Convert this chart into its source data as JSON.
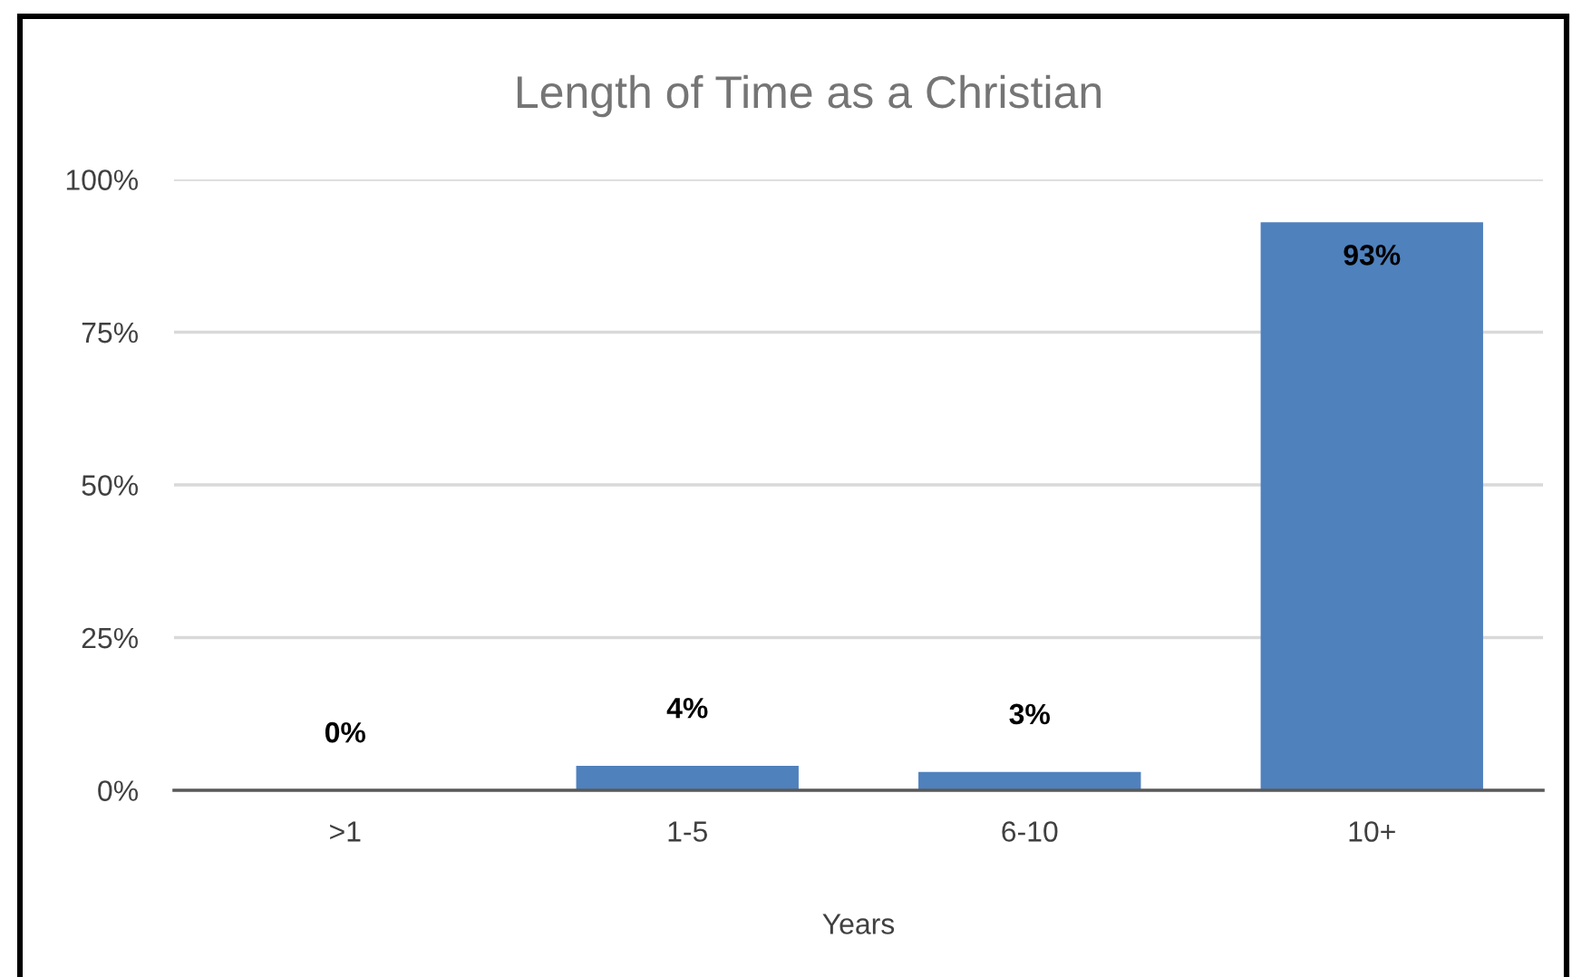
{
  "chart_data": {
    "type": "bar",
    "title": "Length of Time as a Christian",
    "xlabel": "Years",
    "categories": [
      ">1",
      "1-5",
      "6-10",
      "10+"
    ],
    "values": [
      0,
      4,
      3,
      93
    ],
    "color": "#4f81bd",
    "value_labels": [
      "0%",
      "4%",
      "3%",
      "93%"
    ],
    "ylim": [
      0,
      100
    ],
    "yticks": [
      {
        "value": 0,
        "label": "0%"
      },
      {
        "value": 25,
        "label": "25%"
      },
      {
        "value": 50,
        "label": "50%"
      },
      {
        "value": 75,
        "label": "75%"
      },
      {
        "value": 100,
        "label": "100%"
      }
    ],
    "grid": "y"
  }
}
